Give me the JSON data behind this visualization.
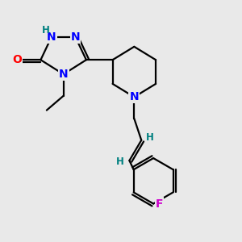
{
  "bg_color": "#e9e9e9",
  "atom_colors": {
    "N": "#0000ff",
    "NH": "#008080",
    "O": "#ff0000",
    "F": "#cc00cc",
    "C": "#000000",
    "H": "#008080"
  },
  "bond_color": "#000000",
  "bond_width": 1.6,
  "font_size_atom": 10
}
